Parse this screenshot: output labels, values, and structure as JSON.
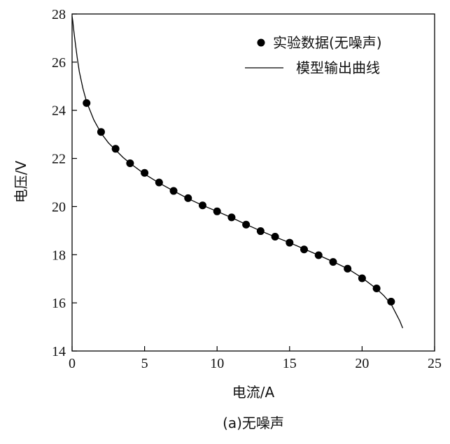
{
  "chart_data": {
    "type": "scatter",
    "xlabel": "电流/A",
    "ylabel": "电压/V",
    "caption": "(a)无噪声",
    "xlim": [
      0,
      25
    ],
    "ylim": [
      14,
      28
    ],
    "xticks": [
      0,
      5,
      10,
      15,
      20,
      25
    ],
    "yticks": [
      14,
      16,
      18,
      20,
      22,
      24,
      26,
      28
    ],
    "grid": false,
    "legend_position": "top-right",
    "series": [
      {
        "name": "实验数据(无噪声)",
        "kind": "scatter",
        "color": "#000000",
        "x": [
          1,
          2,
          3,
          4,
          5,
          6,
          7,
          8,
          9,
          10,
          11,
          12,
          13,
          14,
          15,
          16,
          17,
          18,
          19,
          20,
          21,
          22
        ],
        "y": [
          24.3,
          23.1,
          22.4,
          21.8,
          21.4,
          21.0,
          20.65,
          20.35,
          20.05,
          19.8,
          19.55,
          19.25,
          18.98,
          18.75,
          18.5,
          18.22,
          17.98,
          17.7,
          17.42,
          17.02,
          16.6,
          16.05
        ]
      },
      {
        "name": "模型输出曲线",
        "kind": "line",
        "color": "#000000",
        "x": [
          0,
          0.05,
          0.1,
          0.2,
          0.35,
          0.5,
          0.75,
          1,
          1.5,
          2,
          2.5,
          3,
          3.5,
          4,
          5,
          6,
          7,
          8,
          9,
          10,
          11,
          12,
          13,
          14,
          15,
          16,
          17,
          18,
          19,
          20,
          21,
          21.5,
          22,
          22.3,
          22.6,
          22.8
        ],
        "y": [
          27.9,
          27.7,
          27.4,
          26.9,
          26.2,
          25.6,
          24.9,
          24.35,
          23.6,
          23.05,
          22.65,
          22.35,
          22.05,
          21.8,
          21.35,
          20.98,
          20.65,
          20.33,
          20.05,
          19.8,
          19.54,
          19.26,
          18.99,
          18.74,
          18.5,
          18.24,
          17.98,
          17.71,
          17.42,
          17.04,
          16.58,
          16.3,
          15.95,
          15.6,
          15.25,
          14.95
        ]
      }
    ]
  }
}
